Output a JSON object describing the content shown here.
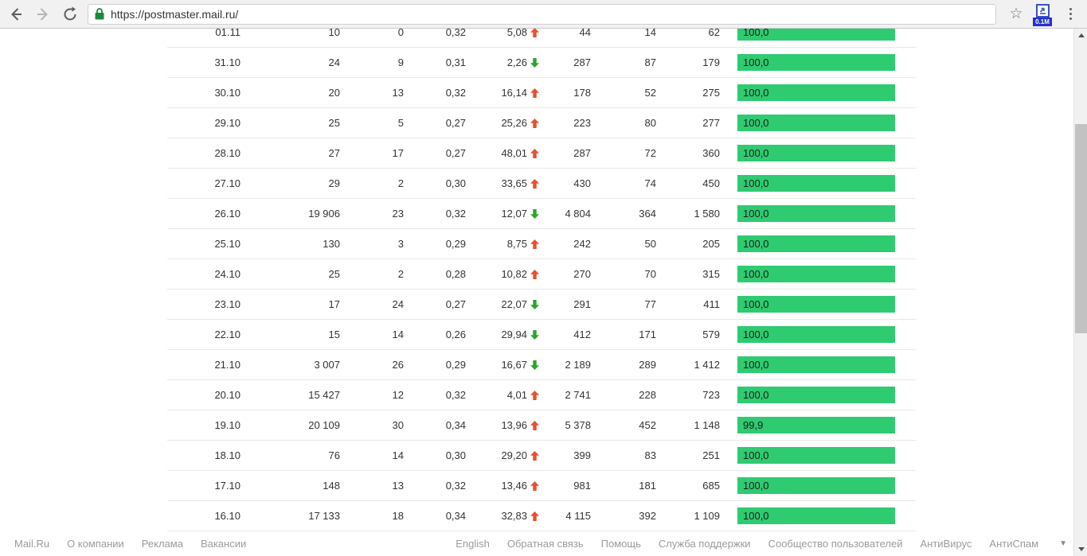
{
  "browser": {
    "url": "https://postmaster.mail.ru/",
    "extension_badge": "0.1M"
  },
  "colors": {
    "bar_green": "#2ecb70",
    "trend_up": "#e8502c",
    "trend_down": "#2aa52a",
    "toolbar_bg": "#f1f1f1",
    "lock_green": "#1a8a3e"
  },
  "chart_data": {
    "type": "table",
    "columns": [
      "date",
      "col1",
      "col2",
      "col3",
      "trend_pct",
      "col5",
      "col6",
      "col7",
      "delivered_pct"
    ],
    "rows": [
      {
        "date": "01.11",
        "c1": "10",
        "c2": "0",
        "c3": "0,32",
        "trend_value": "5,08",
        "trend": "up",
        "c5": "44",
        "c6": "14",
        "c7": "62",
        "bar_label": "100,0",
        "bar_pct": 100
      },
      {
        "date": "31.10",
        "c1": "24",
        "c2": "9",
        "c3": "0,31",
        "trend_value": "2,26",
        "trend": "down",
        "c5": "287",
        "c6": "87",
        "c7": "179",
        "bar_label": "100,0",
        "bar_pct": 100
      },
      {
        "date": "30.10",
        "c1": "20",
        "c2": "13",
        "c3": "0,32",
        "trend_value": "16,14",
        "trend": "up",
        "c5": "178",
        "c6": "52",
        "c7": "275",
        "bar_label": "100,0",
        "bar_pct": 100
      },
      {
        "date": "29.10",
        "c1": "25",
        "c2": "5",
        "c3": "0,27",
        "trend_value": "25,26",
        "trend": "up",
        "c5": "223",
        "c6": "80",
        "c7": "277",
        "bar_label": "100,0",
        "bar_pct": 100
      },
      {
        "date": "28.10",
        "c1": "27",
        "c2": "17",
        "c3": "0,27",
        "trend_value": "48,01",
        "trend": "up",
        "c5": "287",
        "c6": "72",
        "c7": "360",
        "bar_label": "100,0",
        "bar_pct": 100
      },
      {
        "date": "27.10",
        "c1": "29",
        "c2": "2",
        "c3": "0,30",
        "trend_value": "33,65",
        "trend": "up",
        "c5": "430",
        "c6": "74",
        "c7": "450",
        "bar_label": "100,0",
        "bar_pct": 100
      },
      {
        "date": "26.10",
        "c1": "19 906",
        "c2": "23",
        "c3": "0,32",
        "trend_value": "12,07",
        "trend": "down",
        "c5": "4 804",
        "c6": "364",
        "c7": "1 580",
        "bar_label": "100,0",
        "bar_pct": 100
      },
      {
        "date": "25.10",
        "c1": "130",
        "c2": "3",
        "c3": "0,29",
        "trend_value": "8,75",
        "trend": "up",
        "c5": "242",
        "c6": "50",
        "c7": "205",
        "bar_label": "100,0",
        "bar_pct": 100
      },
      {
        "date": "24.10",
        "c1": "25",
        "c2": "2",
        "c3": "0,28",
        "trend_value": "10,82",
        "trend": "up",
        "c5": "270",
        "c6": "70",
        "c7": "315",
        "bar_label": "100,0",
        "bar_pct": 100
      },
      {
        "date": "23.10",
        "c1": "17",
        "c2": "24",
        "c3": "0,27",
        "trend_value": "22,07",
        "trend": "down",
        "c5": "291",
        "c6": "77",
        "c7": "411",
        "bar_label": "100,0",
        "bar_pct": 100
      },
      {
        "date": "22.10",
        "c1": "15",
        "c2": "14",
        "c3": "0,26",
        "trend_value": "29,94",
        "trend": "down",
        "c5": "412",
        "c6": "171",
        "c7": "579",
        "bar_label": "100,0",
        "bar_pct": 100
      },
      {
        "date": "21.10",
        "c1": "3 007",
        "c2": "26",
        "c3": "0,29",
        "trend_value": "16,67",
        "trend": "down",
        "c5": "2 189",
        "c6": "289",
        "c7": "1 412",
        "bar_label": "100,0",
        "bar_pct": 100
      },
      {
        "date": "20.10",
        "c1": "15 427",
        "c2": "12",
        "c3": "0,32",
        "trend_value": "4,01",
        "trend": "up",
        "c5": "2 741",
        "c6": "228",
        "c7": "723",
        "bar_label": "100,0",
        "bar_pct": 100
      },
      {
        "date": "19.10",
        "c1": "20 109",
        "c2": "30",
        "c3": "0,34",
        "trend_value": "13,96",
        "trend": "up",
        "c5": "5 378",
        "c6": "452",
        "c7": "1 148",
        "bar_label": "99,9",
        "bar_pct": 99.9
      },
      {
        "date": "18.10",
        "c1": "76",
        "c2": "14",
        "c3": "0,30",
        "trend_value": "29,20",
        "trend": "up",
        "c5": "399",
        "c6": "83",
        "c7": "251",
        "bar_label": "100,0",
        "bar_pct": 100
      },
      {
        "date": "17.10",
        "c1": "148",
        "c2": "13",
        "c3": "0,32",
        "trend_value": "13,46",
        "trend": "up",
        "c5": "981",
        "c6": "181",
        "c7": "685",
        "bar_label": "100,0",
        "bar_pct": 100
      },
      {
        "date": "16.10",
        "c1": "17 133",
        "c2": "18",
        "c3": "0,34",
        "trend_value": "32,83",
        "trend": "up",
        "c5": "4 115",
        "c6": "392",
        "c7": "1 109",
        "bar_label": "100,0",
        "bar_pct": 100
      }
    ]
  },
  "footer": {
    "left": [
      "Mail.Ru",
      "О компании",
      "Реклама",
      "Вакансии"
    ],
    "right": [
      "English",
      "Обратная связь",
      "Помощь",
      "Служба поддержки",
      "Сообщество пользователей",
      "АнтиВирус",
      "АнтиСпам"
    ]
  }
}
